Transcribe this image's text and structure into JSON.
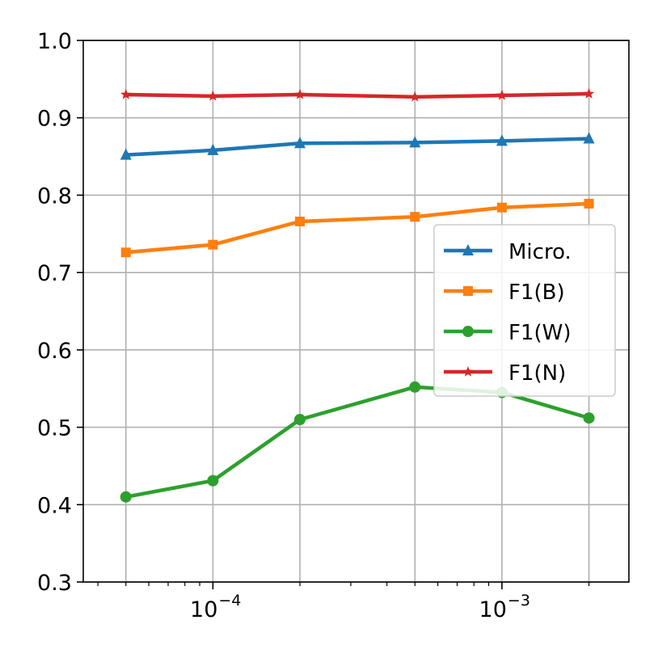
{
  "chart_data": {
    "type": "line",
    "title": "",
    "xlabel": "",
    "ylabel": "",
    "xscale": "log",
    "x": [
      5e-05,
      0.0001,
      0.0002,
      0.0005,
      0.001,
      0.002
    ],
    "xlim": [
      3.56e-05,
      0.00275
    ],
    "ylim": [
      0.3,
      1.0
    ],
    "grid": true,
    "legend_position": "right",
    "y_ticks": [
      "0.3",
      "0.4",
      "0.5",
      "0.6",
      "0.7",
      "0.8",
      "0.9",
      "1.0"
    ],
    "x_ticks": [
      {
        "value": 0.0001,
        "base": "10",
        "exponent": "−4"
      },
      {
        "value": 0.001,
        "base": "10",
        "exponent": "−3"
      }
    ],
    "series": [
      {
        "name": "Micro.",
        "color": "#1f77b4",
        "marker": "triangle",
        "values": [
          0.852,
          0.858,
          0.867,
          0.868,
          0.87,
          0.873
        ]
      },
      {
        "name": "F1(B)",
        "color": "#ff7f0e",
        "marker": "square",
        "values": [
          0.726,
          0.736,
          0.766,
          0.772,
          0.784,
          0.789
        ]
      },
      {
        "name": "F1(W)",
        "color": "#2ca02c",
        "marker": "circle",
        "values": [
          0.41,
          0.431,
          0.51,
          0.552,
          0.545,
          0.512
        ]
      },
      {
        "name": "F1(N)",
        "color": "#d62728",
        "marker": "star",
        "values": [
          0.93,
          0.928,
          0.93,
          0.927,
          0.929,
          0.931
        ]
      }
    ]
  }
}
